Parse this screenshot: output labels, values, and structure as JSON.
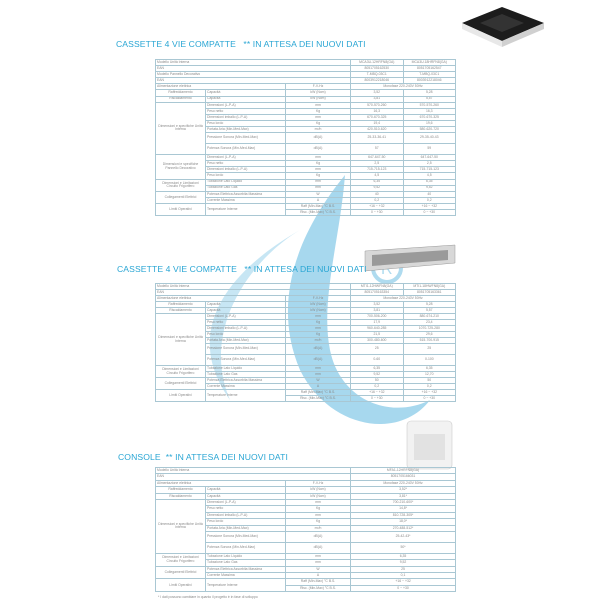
{
  "colors": {
    "accent": "#2aa6d4",
    "watermark": "#5fb8e0",
    "border": "#a9c7d3"
  },
  "sections": [
    {
      "title": "CASSETTE 4 VIE COMPATTE   ** IN ATTESA DEI NUOVI DATI",
      "rows": [
        {
          "type": "head",
          "label": "Modello Unità Interna",
          "values": [
            "MCA3U-12HRFN8(GA)",
            "MCA3U-18HRFN8(GA)"
          ]
        },
        {
          "type": "head",
          "label": "EAN",
          "values": [
            "8051705162530",
            "8051705162547"
          ]
        },
        {
          "type": "head",
          "label": "Modello Pannello Decorativo",
          "values": [
            "T-MBQ-03C1",
            "T-MBQ-03C1"
          ]
        },
        {
          "type": "head",
          "label": "EAN",
          "values": [
            "8003912218046",
            "8003912218046"
          ]
        },
        {
          "type": "power",
          "label": "Alimentazione elettrica",
          "unit": "F-V-Hz",
          "value": "Monofase 220-240V 50Hz"
        },
        {
          "group": "Raffreddamento",
          "param": "Capacità",
          "unit": "kW (Nom)",
          "values": [
            "3,52",
            "5,28"
          ]
        },
        {
          "group": "Riscaldamento",
          "param": "Capacità",
          "unit": "kW (Nom)",
          "values": [
            "3,81",
            "5,57"
          ]
        },
        {
          "group": "Dimensioni e specifiche Unità Interna",
          "param": "Dimensioni (L-P-A)",
          "unit": "mm",
          "values": [
            "570-570-260",
            "570-570-260"
          ]
        },
        {
          "group": "Dimensioni e specifiche Unità Interna",
          "param": "Peso netto",
          "unit": "Kg",
          "values": [
            "16,3",
            "16,3"
          ]
        },
        {
          "group": "Dimensioni e specifiche Unità Interna",
          "param": "Dimensioni imballo (L-P-A)",
          "unit": "mm",
          "values": [
            "670-670-325",
            "670-670-325"
          ]
        },
        {
          "group": "Dimensioni e specifiche Unità Interna",
          "param": "Peso lordo",
          "unit": "Kg",
          "values": [
            "19,4",
            "19,6"
          ]
        },
        {
          "group": "Dimensioni e specifiche Unità Interna",
          "param": "Portata Aria (Min-Med-Max)",
          "unit": "m³/h",
          "values": [
            "420-510-620",
            "580-620-720"
          ]
        },
        {
          "group": "Dimensioni e specifiche Unità Interna",
          "param": "Pressione Sonora (Min-Med-Max)",
          "unit": "dB(A)",
          "values": [
            "25-33-36-41",
            "29-35-40-43"
          ],
          "tall": true
        },
        {
          "group": "Dimensioni e specifiche Unità Interna",
          "param": "Potenza Sonora (Min-Med-Max)",
          "unit": "dB(A)",
          "values": [
            "57",
            "59"
          ],
          "tall": true
        },
        {
          "group": "Dimensioni e specifiche Pannello Decorativo",
          "param": "Dimensioni (L-P-A)",
          "unit": "mm",
          "values": [
            "647-647-50",
            "647-647-50"
          ]
        },
        {
          "group": "Dimensioni e specifiche Pannello Decorativo",
          "param": "Peso netto",
          "unit": "Kg",
          "values": [
            "2,5",
            "2,5"
          ]
        },
        {
          "group": "Dimensioni e specifiche Pannello Decorativo",
          "param": "Dimensioni imballo (L-P-A)",
          "unit": "mm",
          "values": [
            "715-715-123",
            "715-715-123"
          ]
        },
        {
          "group": "Dimensioni e specifiche Pannello Decorativo",
          "param": "Peso lordo",
          "unit": "Kg",
          "values": [
            "4,5",
            "4,5"
          ]
        },
        {
          "group": "Dimensioni e Limitazioni Circuito Frigorifero",
          "param": "Tubazione Lato Liquido",
          "unit": "mm",
          "values": [
            "6,35",
            "6,35"
          ]
        },
        {
          "group": "Dimensioni e Limitazioni Circuito Frigorifero",
          "param": "Tubazione Lato Gas",
          "unit": "mm",
          "values": [
            "9,52",
            "9,52"
          ]
        },
        {
          "group": "Collegamenti Elettrici",
          "param": "Potenza Elettrica Assorbita Massima",
          "unit": "W",
          "values": [
            "40",
            "40"
          ]
        },
        {
          "group": "Collegamenti Elettrici",
          "param": "Corrente Massima",
          "unit": "A",
          "values": [
            "0,2",
            "0,2"
          ]
        },
        {
          "group": "Limiti Operativi",
          "param": "Temperature Interne",
          "unit": "Raff (Min-Max) °C B.S.",
          "values": [
            "+16 ~ +32",
            "+16 ~ +32"
          ]
        },
        {
          "group": "Limiti Operativi",
          "param": "Temperature Interne",
          "unit": "Risc. (Min-Max) °C B.S.",
          "values": [
            "0 ~ +30",
            "0 ~ +30"
          ]
        }
      ]
    },
    {
      "title": "CASSETTE 4 VIE COMPATTE   ** IN ATTESA DEI NUOVI DATI",
      "rows": [
        {
          "type": "head",
          "label": "Modello Unità Interna",
          "values": [
            "MTI1-12HWFN8(GA)",
            "MTI1-18HWFN8(GA)"
          ]
        },
        {
          "type": "head",
          "label": "EAN",
          "values": [
            "8051705163354",
            "8051705163361"
          ]
        },
        {
          "type": "power",
          "label": "Alimentazione elettrica",
          "unit": "F-V-Hz",
          "value": "Monofase 220-240V 50Hz"
        },
        {
          "group": "Raffreddamento",
          "param": "Capacità",
          "unit": "kW (Nom)",
          "values": [
            "3,52",
            "5,28"
          ]
        },
        {
          "group": "Riscaldamento",
          "param": "Capacità",
          "unit": "kW (Nom)",
          "values": [
            "3,81",
            "5,57"
          ]
        },
        {
          "group": "Dimensioni e specifiche Unità Interna",
          "param": "Dimensioni (L-P-A)",
          "unit": "mm",
          "values": [
            "700-506-200",
            "880-674-210"
          ]
        },
        {
          "group": "Dimensioni e specifiche Unità Interna",
          "param": "Peso netto",
          "unit": "Kg",
          "values": [
            "17,9",
            "23,4"
          ]
        },
        {
          "group": "Dimensioni e specifiche Unità Interna",
          "param": "Dimensioni imballo (L-P-A)",
          "unit": "mm",
          "values": [
            "960-640-285",
            "1070-725-280"
          ]
        },
        {
          "group": "Dimensioni e specifiche Unità Interna",
          "param": "Peso lordo",
          "unit": "Kg",
          "values": [
            "21,5",
            "29,6"
          ]
        },
        {
          "group": "Dimensioni e specifiche Unità Interna",
          "param": "Portata Aria (Min-Med-Max)",
          "unit": "m³/h",
          "values": [
            "300-480-600",
            "515-700-915"
          ]
        },
        {
          "group": "Dimensioni e specifiche Unità Interna",
          "param": "Pressione Sonora (Min-Med-Max)",
          "unit": "dB(A)",
          "values": [
            "25",
            "25"
          ],
          "tall": true
        },
        {
          "group": "Dimensioni e specifiche Unità Interna",
          "param": "Potenza Sonora (Min-Med-Max)",
          "unit": "dB(A)",
          "values": [
            "0-60",
            "0-100"
          ],
          "tall": true
        },
        {
          "group": "Dimensioni e Limitazioni Circuito Frigorifero",
          "param": "Tubazione Lato Liquido",
          "unit": "mm",
          "values": [
            "6,35",
            "6,35"
          ]
        },
        {
          "group": "Dimensioni e Limitazioni Circuito Frigorifero",
          "param": "Tubazione Lato Gas",
          "unit": "mm",
          "values": [
            "9,52",
            "12,70"
          ]
        },
        {
          "group": "Collegamenti Elettrici",
          "param": "Potenza Elettrica Assorbita Massima",
          "unit": "W",
          "values": [
            "50",
            "50"
          ]
        },
        {
          "group": "Collegamenti Elettrici",
          "param": "Corrente Massima",
          "unit": "A",
          "values": [
            "0,2",
            "0,2"
          ]
        },
        {
          "group": "Limiti Operativi",
          "param": "Temperature Interne",
          "unit": "Raff (Min-Max) °C B.S.",
          "values": [
            "+16 ~ +32",
            "+16 ~ +32"
          ]
        },
        {
          "group": "Limiti Operativi",
          "param": "Temperature Interne",
          "unit": "Risc. (Min-Max) °C B.S.",
          "values": [
            "0 ~ +30",
            "0 ~ +30"
          ]
        }
      ]
    },
    {
      "title": "CONSOLE  ** IN ATTESA DEI NUOVI DATI",
      "rows": [
        {
          "type": "head",
          "label": "Modello Unità Interna",
          "values": [
            "MFA1-12HRFN8(GA)"
          ]
        },
        {
          "type": "head",
          "label": "EAN",
          "values": [
            "8051705166031"
          ]
        },
        {
          "type": "power",
          "label": "Alimentazione elettrica",
          "unit": "F-V-Hz",
          "value": "Monofase 220-240V 50Hz"
        },
        {
          "group": "Raffreddamento",
          "param": "Capacità",
          "unit": "kW (Nom)",
          "values": [
            "3,52*"
          ]
        },
        {
          "group": "Riscaldamento",
          "param": "Capacità",
          "unit": "kW (Nom)",
          "values": [
            "3,81*"
          ]
        },
        {
          "group": "Dimensioni e specifiche Unità Interna",
          "param": "Dimensioni (L-P-A)",
          "unit": "mm",
          "values": [
            "700-210-600*"
          ]
        },
        {
          "group": "Dimensioni e specifiche Unità Interna",
          "param": "Peso netto",
          "unit": "Kg",
          "values": [
            "14,8*"
          ]
        },
        {
          "group": "Dimensioni e specifiche Unità Interna",
          "param": "Dimensioni imballo (L-P-A)",
          "unit": "mm",
          "values": [
            "810-728-305*"
          ]
        },
        {
          "group": "Dimensioni e specifiche Unità Interna",
          "param": "Peso lordo",
          "unit": "Kg",
          "values": [
            "18,0*"
          ]
        },
        {
          "group": "Dimensioni e specifiche Unità Interna",
          "param": "Portata Aria (Min-Med-Max)",
          "unit": "m³/h",
          "values": [
            "270-488-512*"
          ]
        },
        {
          "group": "Dimensioni e specifiche Unità Interna",
          "param": "Pressione Sonora (Min-Med-Max)",
          "unit": "dB(A)",
          "values": [
            "25-42-43*"
          ],
          "tall": true
        },
        {
          "group": "Dimensioni e specifiche Unità Interna",
          "param": "Potenza Sonora (Min-Med-Max)",
          "unit": "dB(A)",
          "values": [
            "50*"
          ],
          "tall": true
        },
        {
          "group": "Dimensioni e Limitazioni Circuito Frigorifero",
          "param": "Tubazione Lato Liquido",
          "unit": "mm",
          "values": [
            "6,35"
          ]
        },
        {
          "group": "Dimensioni e Limitazioni Circuito Frigorifero",
          "param": "Tubazione Lato Gas",
          "unit": "mm",
          "values": [
            "9,52"
          ]
        },
        {
          "group": "Collegamenti Elettrici",
          "param": "Potenza Elettrica Assorbita Massima",
          "unit": "W",
          "values": [
            "25"
          ]
        },
        {
          "group": "Collegamenti Elettrici",
          "param": "Corrente Massima",
          "unit": "A",
          "values": [
            "0,1"
          ]
        },
        {
          "group": "Limiti Operativi",
          "param": "Temperature Interne",
          "unit": "Raff (Min-Max) °C B.S.",
          "values": [
            "+16 ~ +32"
          ]
        },
        {
          "group": "Limiti Operativi",
          "param": "Temperature Interne",
          "unit": "Risc. (Min-Max) °C B.S.",
          "values": [
            "0 ~ +30"
          ]
        }
      ]
    }
  ],
  "footnote": "* I dati possono cambiare in quanto il progetto è in fase di sviluppo",
  "watermark_logo": "R"
}
